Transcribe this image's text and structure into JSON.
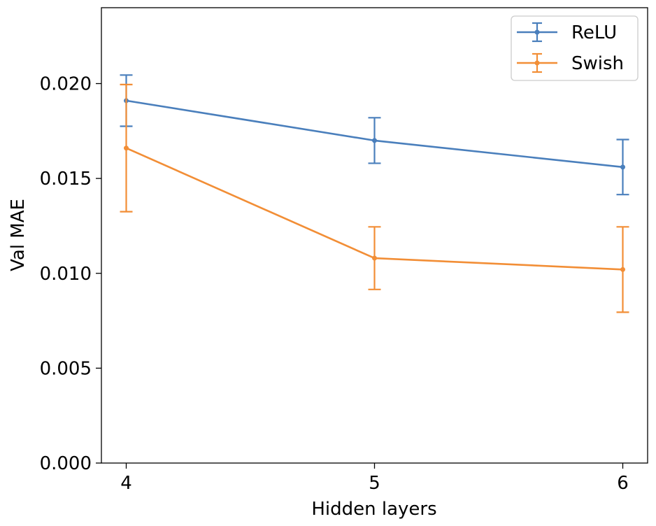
{
  "chart_data": {
    "type": "line",
    "title": "",
    "xlabel": "Hidden layers",
    "ylabel": "Val MAE",
    "x": [
      4,
      5,
      6
    ],
    "x_tick_labels": [
      "4",
      "5",
      "6"
    ],
    "xlim": [
      3.9,
      6.1
    ],
    "ylim": [
      0.0,
      0.024
    ],
    "y_ticks": [
      0.0,
      0.005,
      0.01,
      0.015,
      0.02
    ],
    "y_tick_labels": [
      "0.000",
      "0.005",
      "0.010",
      "0.015",
      "0.020"
    ],
    "grid": false,
    "legend_position": "top-right",
    "error_bars": true,
    "series": [
      {
        "name": "ReLU",
        "color": "#4a7fbc",
        "values": [
          0.0191,
          0.017,
          0.0156
        ],
        "errors": [
          0.00135,
          0.0012,
          0.00145
        ]
      },
      {
        "name": "Swish",
        "color": "#f28e36",
        "values": [
          0.0166,
          0.0108,
          0.0102
        ],
        "errors": [
          0.00335,
          0.00165,
          0.00225
        ]
      }
    ]
  }
}
